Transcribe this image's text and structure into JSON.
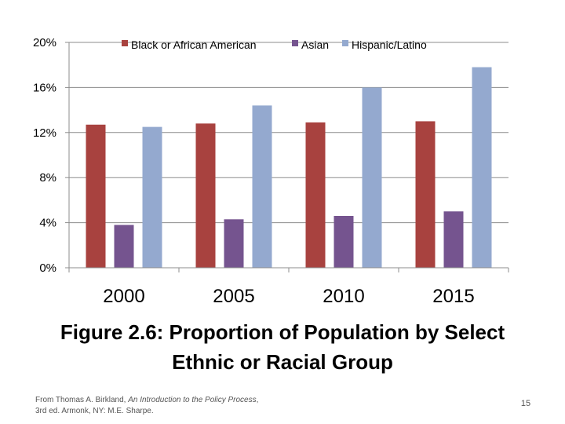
{
  "chart_data": {
    "type": "bar",
    "categories": [
      "2000",
      "2005",
      "2010",
      "2015"
    ],
    "series": [
      {
        "name": "Black or African American",
        "values": [
          12.7,
          12.8,
          12.9,
          13.0
        ],
        "color": "#A8423F"
      },
      {
        "name": "Asian",
        "values": [
          3.8,
          4.3,
          4.6,
          5.0
        ],
        "color": "#75548F"
      },
      {
        "name": "Hispanic/Latino",
        "values": [
          12.5,
          14.4,
          16.0,
          17.8
        ],
        "color": "#94A9CF"
      }
    ],
    "ylim": [
      0,
      20
    ],
    "yticks": [
      "0%",
      "4%",
      "8%",
      "12%",
      "16%",
      "20%"
    ],
    "ytick_values": [
      0,
      4,
      8,
      12,
      16,
      20
    ],
    "grid": true,
    "legend_position": "top"
  },
  "caption": {
    "line1": "Figure 2.6: Proportion of Population by Select",
    "line2": "Ethnic or Racial Group"
  },
  "citation": {
    "prefix": "From Thomas A. Birkland, ",
    "title": "An Introduction to the Policy Process",
    "suffix": ", 3rd ed. Armonk, NY: M.E. Sharpe."
  },
  "page_number": "15"
}
